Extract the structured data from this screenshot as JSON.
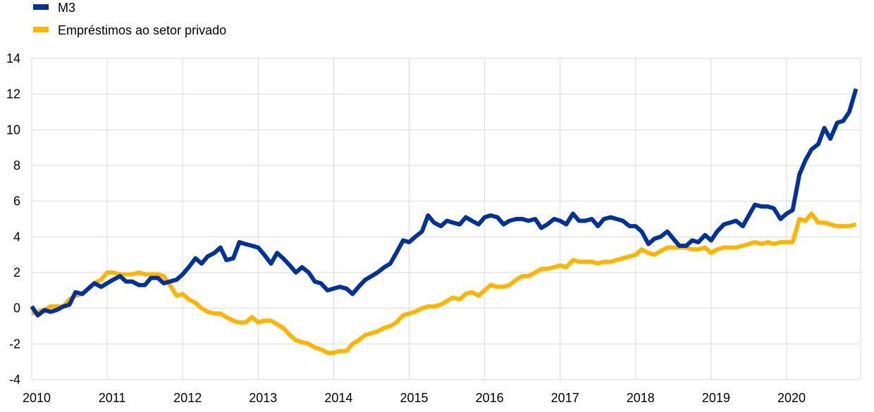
{
  "chart_data": {
    "type": "line",
    "title": "",
    "xlabel": "",
    "ylabel": "",
    "ylim": [
      -4,
      14
    ],
    "yticks": [
      -4,
      -2,
      0,
      2,
      4,
      6,
      8,
      10,
      12,
      14
    ],
    "xlim": [
      2010,
      2020.95
    ],
    "xticks": [
      2010,
      2011,
      2012,
      2013,
      2014,
      2015,
      2016,
      2017,
      2018,
      2019,
      2020
    ],
    "grid": "vertical and horizontal",
    "legend": "top-left",
    "series": [
      {
        "name": "M3",
        "color": "#003299",
        "points": [
          [
            2010.0,
            0.1
          ],
          [
            2010.08,
            -0.4
          ],
          [
            2010.17,
            -0.1
          ],
          [
            2010.25,
            -0.2
          ],
          [
            2010.33,
            -0.1
          ],
          [
            2010.42,
            0.1
          ],
          [
            2010.5,
            0.2
          ],
          [
            2010.58,
            0.9
          ],
          [
            2010.67,
            0.8
          ],
          [
            2010.75,
            1.1
          ],
          [
            2010.83,
            1.4
          ],
          [
            2010.92,
            1.2
          ],
          [
            2011.0,
            1.4
          ],
          [
            2011.08,
            1.6
          ],
          [
            2011.17,
            1.8
          ],
          [
            2011.25,
            1.5
          ],
          [
            2011.33,
            1.5
          ],
          [
            2011.42,
            1.3
          ],
          [
            2011.5,
            1.3
          ],
          [
            2011.58,
            1.7
          ],
          [
            2011.67,
            1.7
          ],
          [
            2011.75,
            1.4
          ],
          [
            2011.83,
            1.5
          ],
          [
            2011.92,
            1.6
          ],
          [
            2012.0,
            1.9
          ],
          [
            2012.08,
            2.3
          ],
          [
            2012.17,
            2.8
          ],
          [
            2012.25,
            2.5
          ],
          [
            2012.33,
            2.9
          ],
          [
            2012.42,
            3.1
          ],
          [
            2012.5,
            3.4
          ],
          [
            2012.58,
            2.7
          ],
          [
            2012.67,
            2.8
          ],
          [
            2012.75,
            3.7
          ],
          [
            2012.83,
            3.6
          ],
          [
            2012.92,
            3.5
          ],
          [
            2013.0,
            3.4
          ],
          [
            2013.08,
            3.0
          ],
          [
            2013.17,
            2.5
          ],
          [
            2013.25,
            3.1
          ],
          [
            2013.33,
            2.8
          ],
          [
            2013.42,
            2.4
          ],
          [
            2013.5,
            2.0
          ],
          [
            2013.58,
            2.3
          ],
          [
            2013.67,
            2.0
          ],
          [
            2013.75,
            1.5
          ],
          [
            2013.83,
            1.4
          ],
          [
            2013.92,
            1.0
          ],
          [
            2014.0,
            1.1
          ],
          [
            2014.08,
            1.2
          ],
          [
            2014.17,
            1.1
          ],
          [
            2014.25,
            0.8
          ],
          [
            2014.33,
            1.2
          ],
          [
            2014.42,
            1.6
          ],
          [
            2014.5,
            1.8
          ],
          [
            2014.58,
            2.0
          ],
          [
            2014.67,
            2.3
          ],
          [
            2014.75,
            2.5
          ],
          [
            2014.83,
            3.1
          ],
          [
            2014.92,
            3.8
          ],
          [
            2015.0,
            3.7
          ],
          [
            2015.08,
            4.0
          ],
          [
            2015.17,
            4.3
          ],
          [
            2015.25,
            5.2
          ],
          [
            2015.33,
            4.8
          ],
          [
            2015.42,
            4.6
          ],
          [
            2015.5,
            4.9
          ],
          [
            2015.58,
            4.8
          ],
          [
            2015.67,
            4.7
          ],
          [
            2015.75,
            5.1
          ],
          [
            2015.83,
            4.9
          ],
          [
            2015.92,
            4.7
          ],
          [
            2016.0,
            5.1
          ],
          [
            2016.08,
            5.2
          ],
          [
            2016.17,
            5.1
          ],
          [
            2016.25,
            4.7
          ],
          [
            2016.33,
            4.9
          ],
          [
            2016.42,
            5.0
          ],
          [
            2016.5,
            5.0
          ],
          [
            2016.58,
            4.9
          ],
          [
            2016.67,
            5.0
          ],
          [
            2016.75,
            4.5
          ],
          [
            2016.83,
            4.7
          ],
          [
            2016.92,
            5.0
          ],
          [
            2017.0,
            4.9
          ],
          [
            2017.08,
            4.7
          ],
          [
            2017.17,
            5.3
          ],
          [
            2017.25,
            4.9
          ],
          [
            2017.33,
            4.9
          ],
          [
            2017.42,
            5.0
          ],
          [
            2017.5,
            4.6
          ],
          [
            2017.58,
            5.0
          ],
          [
            2017.67,
            5.1
          ],
          [
            2017.75,
            5.0
          ],
          [
            2017.83,
            4.9
          ],
          [
            2017.92,
            4.6
          ],
          [
            2018.0,
            4.6
          ],
          [
            2018.08,
            4.3
          ],
          [
            2018.17,
            3.6
          ],
          [
            2018.25,
            3.9
          ],
          [
            2018.33,
            4.0
          ],
          [
            2018.42,
            4.3
          ],
          [
            2018.5,
            3.9
          ],
          [
            2018.58,
            3.5
          ],
          [
            2018.67,
            3.5
          ],
          [
            2018.75,
            3.8
          ],
          [
            2018.83,
            3.7
          ],
          [
            2018.92,
            4.1
          ],
          [
            2019.0,
            3.8
          ],
          [
            2019.08,
            4.3
          ],
          [
            2019.17,
            4.7
          ],
          [
            2019.25,
            4.8
          ],
          [
            2019.33,
            4.9
          ],
          [
            2019.42,
            4.6
          ],
          [
            2019.5,
            5.2
          ],
          [
            2019.58,
            5.8
          ],
          [
            2019.67,
            5.7
          ],
          [
            2019.75,
            5.7
          ],
          [
            2019.83,
            5.6
          ],
          [
            2019.92,
            5.0
          ],
          [
            2020.0,
            5.3
          ],
          [
            2020.08,
            5.5
          ],
          [
            2020.17,
            7.5
          ],
          [
            2020.25,
            8.3
          ],
          [
            2020.33,
            8.9
          ],
          [
            2020.42,
            9.2
          ],
          [
            2020.5,
            10.1
          ],
          [
            2020.58,
            9.5
          ],
          [
            2020.67,
            10.4
          ],
          [
            2020.75,
            10.5
          ],
          [
            2020.83,
            11.0
          ],
          [
            2020.92,
            12.3
          ]
        ]
      },
      {
        "name": "Empréstimos ao setor privado",
        "color": "#FFB400",
        "points": [
          [
            2010.0,
            -0.3
          ],
          [
            2010.08,
            -0.2
          ],
          [
            2010.17,
            -0.1
          ],
          [
            2010.25,
            0.1
          ],
          [
            2010.33,
            0.1
          ],
          [
            2010.42,
            0.1
          ],
          [
            2010.5,
            0.5
          ],
          [
            2010.58,
            0.7
          ],
          [
            2010.67,
            0.8
          ],
          [
            2010.75,
            1.1
          ],
          [
            2010.83,
            1.4
          ],
          [
            2010.92,
            1.6
          ],
          [
            2011.0,
            2.0
          ],
          [
            2011.08,
            2.0
          ],
          [
            2011.17,
            1.9
          ],
          [
            2011.25,
            1.9
          ],
          [
            2011.33,
            1.9
          ],
          [
            2011.42,
            2.0
          ],
          [
            2011.5,
            1.9
          ],
          [
            2011.58,
            1.9
          ],
          [
            2011.67,
            1.9
          ],
          [
            2011.75,
            1.8
          ],
          [
            2011.83,
            1.3
          ],
          [
            2011.92,
            0.7
          ],
          [
            2012.0,
            0.8
          ],
          [
            2012.08,
            0.5
          ],
          [
            2012.17,
            0.3
          ],
          [
            2012.25,
            0.0
          ],
          [
            2012.33,
            -0.2
          ],
          [
            2012.42,
            -0.3
          ],
          [
            2012.5,
            -0.3
          ],
          [
            2012.58,
            -0.5
          ],
          [
            2012.67,
            -0.7
          ],
          [
            2012.75,
            -0.8
          ],
          [
            2012.83,
            -0.8
          ],
          [
            2012.92,
            -0.5
          ],
          [
            2013.0,
            -0.8
          ],
          [
            2013.08,
            -0.7
          ],
          [
            2013.17,
            -0.7
          ],
          [
            2013.25,
            -0.9
          ],
          [
            2013.33,
            -1.1
          ],
          [
            2013.42,
            -1.5
          ],
          [
            2013.5,
            -1.8
          ],
          [
            2013.58,
            -1.9
          ],
          [
            2013.67,
            -2.0
          ],
          [
            2013.75,
            -2.2
          ],
          [
            2013.83,
            -2.3
          ],
          [
            2013.92,
            -2.5
          ],
          [
            2014.0,
            -2.5
          ],
          [
            2014.08,
            -2.4
          ],
          [
            2014.17,
            -2.4
          ],
          [
            2014.25,
            -2.0
          ],
          [
            2014.33,
            -1.8
          ],
          [
            2014.42,
            -1.5
          ],
          [
            2014.5,
            -1.4
          ],
          [
            2014.58,
            -1.3
          ],
          [
            2014.67,
            -1.1
          ],
          [
            2014.75,
            -1.0
          ],
          [
            2014.83,
            -0.8
          ],
          [
            2014.92,
            -0.4
          ],
          [
            2015.0,
            -0.3
          ],
          [
            2015.08,
            -0.2
          ],
          [
            2015.17,
            0.0
          ],
          [
            2015.25,
            0.1
          ],
          [
            2015.33,
            0.1
          ],
          [
            2015.42,
            0.2
          ],
          [
            2015.5,
            0.4
          ],
          [
            2015.58,
            0.6
          ],
          [
            2015.67,
            0.5
          ],
          [
            2015.75,
            0.8
          ],
          [
            2015.83,
            0.9
          ],
          [
            2015.92,
            0.7
          ],
          [
            2016.0,
            1.0
          ],
          [
            2016.08,
            1.3
          ],
          [
            2016.17,
            1.2
          ],
          [
            2016.25,
            1.2
          ],
          [
            2016.33,
            1.3
          ],
          [
            2016.42,
            1.6
          ],
          [
            2016.5,
            1.8
          ],
          [
            2016.58,
            1.8
          ],
          [
            2016.67,
            2.0
          ],
          [
            2016.75,
            2.2
          ],
          [
            2016.83,
            2.2
          ],
          [
            2016.92,
            2.3
          ],
          [
            2017.0,
            2.4
          ],
          [
            2017.08,
            2.3
          ],
          [
            2017.17,
            2.7
          ],
          [
            2017.25,
            2.6
          ],
          [
            2017.33,
            2.6
          ],
          [
            2017.42,
            2.6
          ],
          [
            2017.5,
            2.5
          ],
          [
            2017.58,
            2.6
          ],
          [
            2017.67,
            2.6
          ],
          [
            2017.75,
            2.7
          ],
          [
            2017.83,
            2.8
          ],
          [
            2017.92,
            2.9
          ],
          [
            2018.0,
            3.0
          ],
          [
            2018.08,
            3.3
          ],
          [
            2018.17,
            3.1
          ],
          [
            2018.25,
            3.0
          ],
          [
            2018.33,
            3.2
          ],
          [
            2018.42,
            3.4
          ],
          [
            2018.5,
            3.4
          ],
          [
            2018.58,
            3.4
          ],
          [
            2018.67,
            3.4
          ],
          [
            2018.75,
            3.3
          ],
          [
            2018.83,
            3.3
          ],
          [
            2018.92,
            3.4
          ],
          [
            2019.0,
            3.1
          ],
          [
            2019.08,
            3.3
          ],
          [
            2019.17,
            3.4
          ],
          [
            2019.25,
            3.4
          ],
          [
            2019.33,
            3.4
          ],
          [
            2019.42,
            3.5
          ],
          [
            2019.5,
            3.6
          ],
          [
            2019.58,
            3.7
          ],
          [
            2019.67,
            3.6
          ],
          [
            2019.75,
            3.7
          ],
          [
            2019.83,
            3.6
          ],
          [
            2019.92,
            3.7
          ],
          [
            2020.0,
            3.7
          ],
          [
            2020.08,
            3.7
          ],
          [
            2020.17,
            5.0
          ],
          [
            2020.25,
            4.9
          ],
          [
            2020.33,
            5.3
          ],
          [
            2020.42,
            4.8
          ],
          [
            2020.5,
            4.8
          ],
          [
            2020.58,
            4.7
          ],
          [
            2020.67,
            4.6
          ],
          [
            2020.75,
            4.6
          ],
          [
            2020.83,
            4.6
          ],
          [
            2020.92,
            4.7
          ]
        ]
      }
    ]
  }
}
